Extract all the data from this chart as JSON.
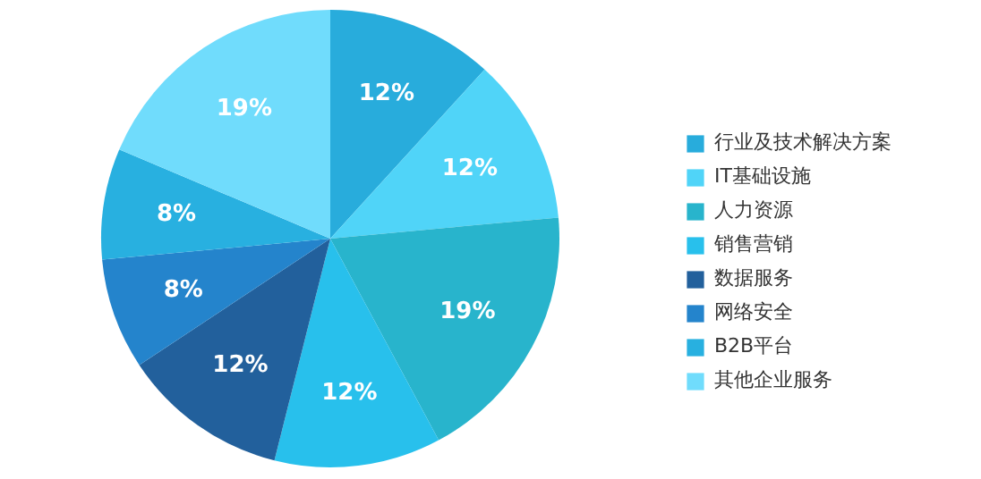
{
  "chart_data": {
    "type": "pie",
    "categories": [
      "行业及技术解决方案",
      "IT基础设施",
      "人力资源",
      "销售营销",
      "数据服务",
      "网络安全",
      "B2B平台",
      "其他企业服务"
    ],
    "values": [
      12,
      12,
      19,
      12,
      12,
      8,
      8,
      19
    ],
    "value_labels": [
      "12%",
      "12%",
      "19%",
      "12%",
      "12%",
      "8%",
      "8%",
      "19%"
    ],
    "colors": [
      "#28acdc",
      "#50d4f8",
      "#28b4cc",
      "#28c0ec",
      "#22609c",
      "#2484cc",
      "#28b0e0",
      "#70dcfc"
    ],
    "legend": "right"
  }
}
